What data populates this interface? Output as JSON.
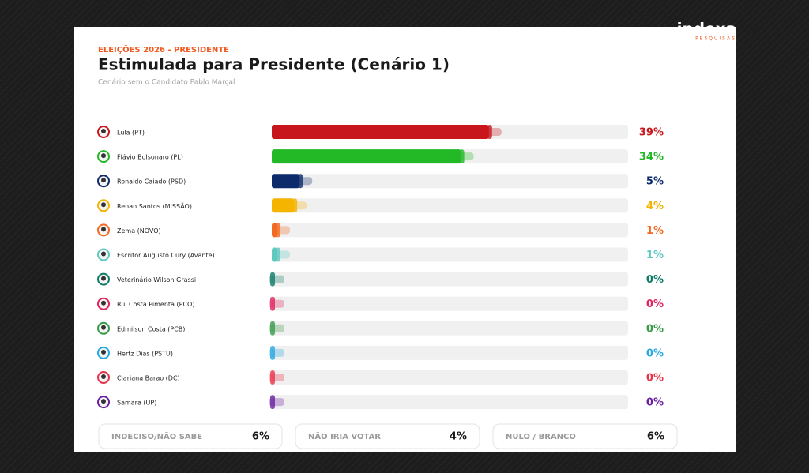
{
  "chart_data": {
    "type": "hbar",
    "kicker": "ELEIÇÕES 2026 - PRESIDENTE",
    "title": "Estimulada para Presidente (Cenário 1)",
    "subtitle": "Cenário sem o Candidato Pablo Marçal",
    "brand": "indexa",
    "brand_sub": "PESQUISAS",
    "categories": [
      "Lula (PT)",
      "Flávio Bolsonaro (PL)",
      "Ronaldo Caiado (PSD)",
      "Renan Santos (MISSÃO)",
      "Zema (NOVO)",
      "Escritor Augusto Cury (Avante)",
      "Veterinário Wilson Grassi",
      "Rui Costa Pimenta (PCO)",
      "Edmilson Costa (PCB)",
      "Hertz Dias (PSTU)",
      "Clariana Barao (DC)",
      "Samara (UP)"
    ],
    "values": [
      39,
      34,
      5,
      4,
      1,
      1,
      0,
      0,
      0,
      0,
      0,
      0
    ],
    "value_labels": [
      "39%",
      "34%",
      "5%",
      "4%",
      "1%",
      "1%",
      "0%",
      "0%",
      "0%",
      "0%",
      "0%",
      "0%"
    ],
    "colors": [
      "#c8161d",
      "#22b826",
      "#0d2a6b",
      "#f4b400",
      "#f26a21",
      "#5fc9c0",
      "#0f7a66",
      "#e0245e",
      "#3a9a4a",
      "#29a8e0",
      "#e8334a",
      "#6b1fa0"
    ],
    "xlim": [
      0,
      64
    ],
    "summary": [
      {
        "label": "INDECISO/NÃO SABE",
        "value": "6%"
      },
      {
        "label": "NÃO IRIA VOTAR",
        "value": "4%"
      },
      {
        "label": "NULO / BRANCO",
        "value": "6%"
      }
    ]
  }
}
